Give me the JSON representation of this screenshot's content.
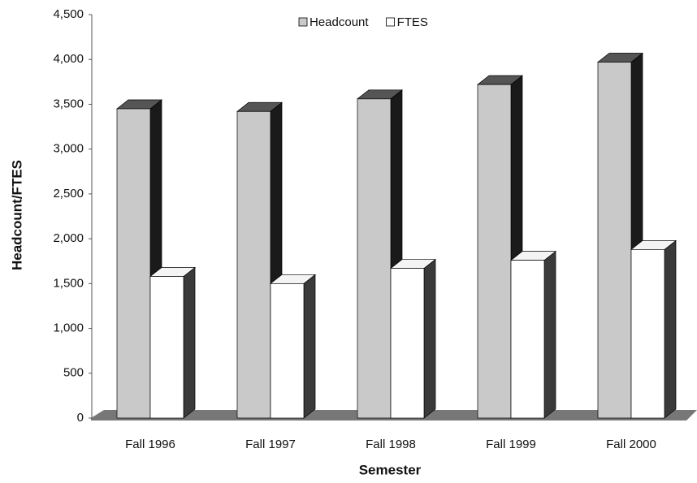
{
  "chart_data": {
    "type": "bar3d",
    "x_label": "Semester",
    "y_label": "Headcount/FTES",
    "categories": [
      "Fall 1996",
      "Fall 1997",
      "Fall 1998",
      "Fall 1999",
      "Fall 2000"
    ],
    "series": [
      {
        "name": "Headcount",
        "color": "#c9c9c9",
        "values": [
          3450,
          3420,
          3560,
          3720,
          3970
        ]
      },
      {
        "name": "FTES",
        "color": "#ffffff",
        "values": [
          1580,
          1500,
          1670,
          1760,
          1880
        ]
      }
    ],
    "ylim": [
      0,
      4500
    ],
    "yticks": [
      0,
      500,
      {
        "value": 1000,
        "label": "1,000"
      },
      {
        "value": 1500,
        "label": "1,500"
      },
      {
        "value": 2000,
        "label": "2,000"
      },
      {
        "value": 2500,
        "label": "2,500"
      },
      {
        "value": 3000,
        "label": "3,000"
      },
      {
        "value": 3500,
        "label": "3,500"
      },
      {
        "value": 4000,
        "label": "4,000"
      },
      {
        "value": 4500,
        "label": "4,500"
      }
    ],
    "grid": false,
    "legend": "top"
  }
}
